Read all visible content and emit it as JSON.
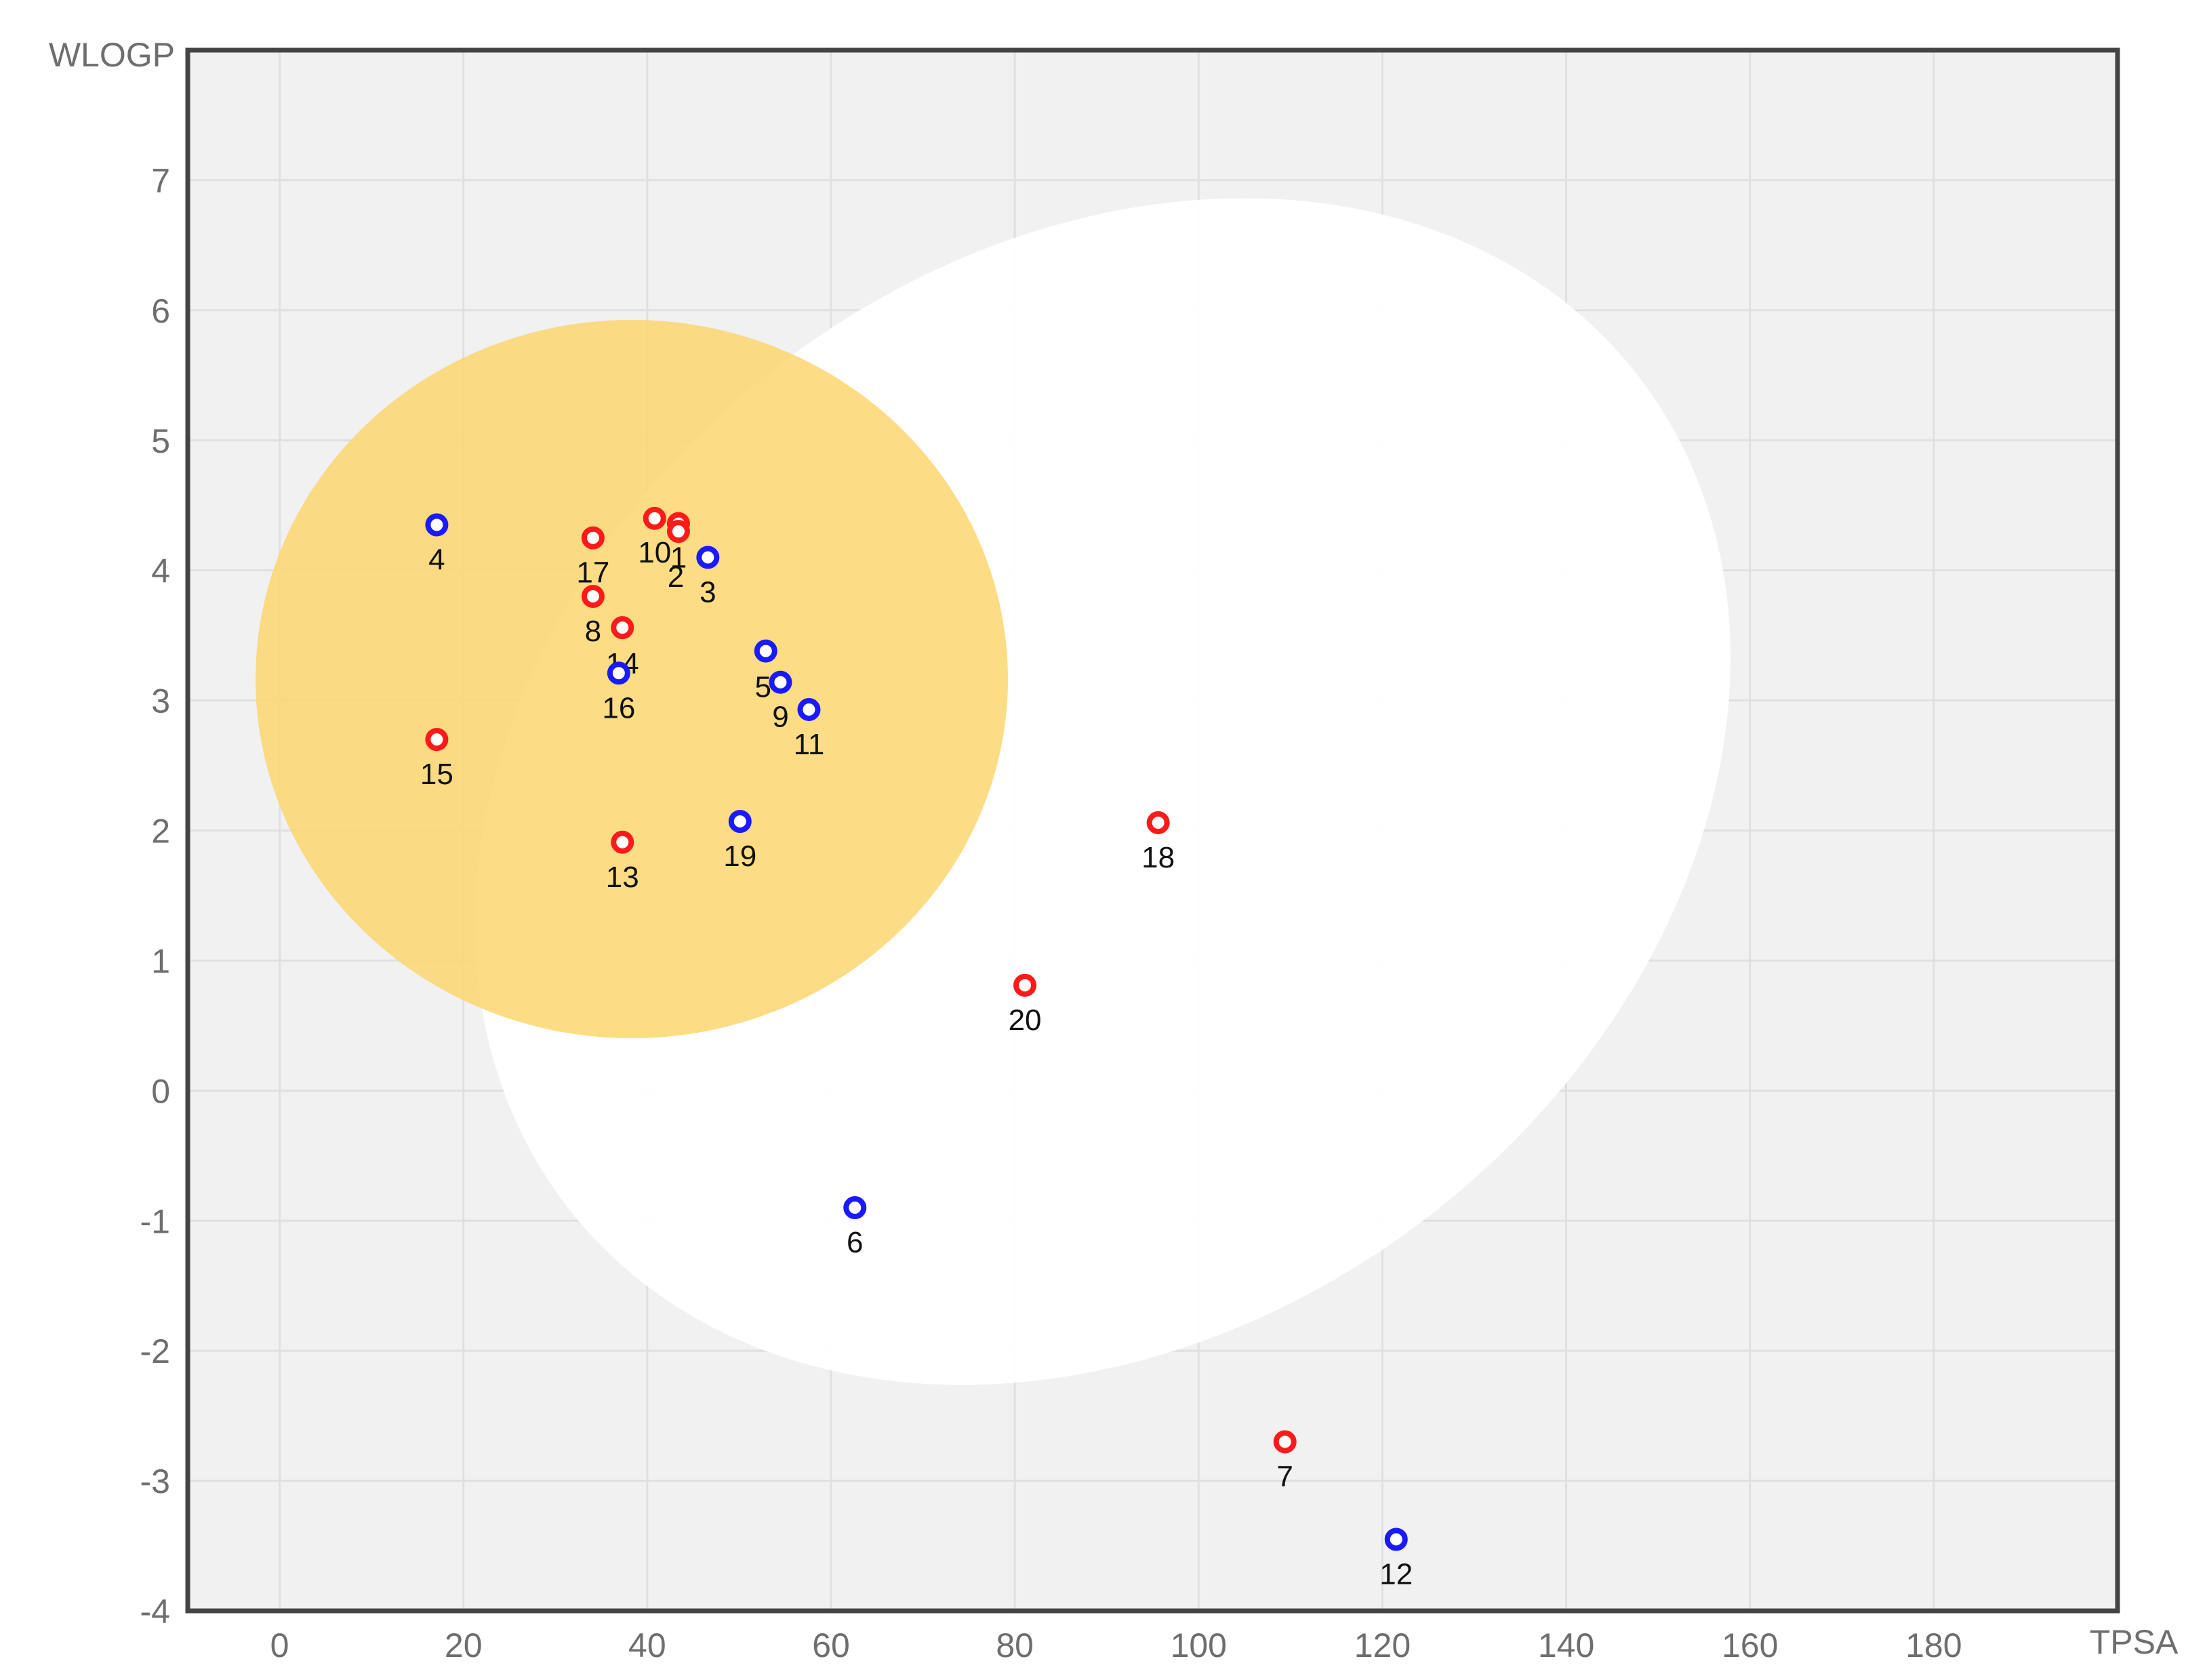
{
  "chart_data": {
    "type": "scatter",
    "title": "",
    "xlabel": "TPSA",
    "ylabel": "WLOGP",
    "xlim": [
      -10,
      200
    ],
    "ylim": [
      -4,
      8
    ],
    "xticks": [
      0,
      20,
      40,
      60,
      80,
      100,
      120,
      140,
      160,
      180
    ],
    "yticks": [
      -4,
      -3,
      -2,
      -1,
      0,
      1,
      2,
      3,
      4,
      5,
      6,
      7
    ],
    "grid": true,
    "colors": {
      "plot_background": "#f1f1f1",
      "white_region": "#ffffff",
      "yolk_region": "#fbd66f",
      "gridline": "#e0e0e0",
      "frame": "#444444",
      "red_point": "#ff1a1a",
      "blue_point": "#1a1aff"
    },
    "regions": [
      {
        "name": "white",
        "shape": "ellipse"
      },
      {
        "name": "yolk",
        "shape": "ellipse"
      }
    ],
    "points": [
      {
        "id": "1",
        "tpsa": 43.4,
        "wlogp": 4.36,
        "color": "red"
      },
      {
        "id": "2",
        "tpsa": 43.4,
        "wlogp": 4.3,
        "color": "red"
      },
      {
        "id": "3",
        "tpsa": 46.6,
        "wlogp": 4.1,
        "color": "blue"
      },
      {
        "id": "4",
        "tpsa": 17.1,
        "wlogp": 4.35,
        "color": "blue"
      },
      {
        "id": "5",
        "tpsa": 52.9,
        "wlogp": 3.38,
        "color": "blue"
      },
      {
        "id": "6",
        "tpsa": 62.6,
        "wlogp": -0.9,
        "color": "blue"
      },
      {
        "id": "7",
        "tpsa": 109.4,
        "wlogp": -2.7,
        "color": "red"
      },
      {
        "id": "8",
        "tpsa": 34.1,
        "wlogp": 3.8,
        "color": "red"
      },
      {
        "id": "9",
        "tpsa": 54.5,
        "wlogp": 3.14,
        "color": "blue"
      },
      {
        "id": "10",
        "tpsa": 40.8,
        "wlogp": 4.4,
        "color": "red"
      },
      {
        "id": "11",
        "tpsa": 57.6,
        "wlogp": 2.93,
        "color": "blue"
      },
      {
        "id": "12",
        "tpsa": 121.5,
        "wlogp": -3.45,
        "color": "blue"
      },
      {
        "id": "13",
        "tpsa": 37.3,
        "wlogp": 1.91,
        "color": "red"
      },
      {
        "id": "14",
        "tpsa": 37.3,
        "wlogp": 3.56,
        "color": "red"
      },
      {
        "id": "15",
        "tpsa": 17.1,
        "wlogp": 2.7,
        "color": "red"
      },
      {
        "id": "16",
        "tpsa": 36.9,
        "wlogp": 3.21,
        "color": "blue"
      },
      {
        "id": "17",
        "tpsa": 34.1,
        "wlogp": 4.25,
        "color": "red"
      },
      {
        "id": "18",
        "tpsa": 95.6,
        "wlogp": 2.06,
        "color": "red"
      },
      {
        "id": "19",
        "tpsa": 50.1,
        "wlogp": 2.07,
        "color": "blue"
      },
      {
        "id": "20",
        "tpsa": 81.1,
        "wlogp": 0.81,
        "color": "red"
      }
    ]
  }
}
